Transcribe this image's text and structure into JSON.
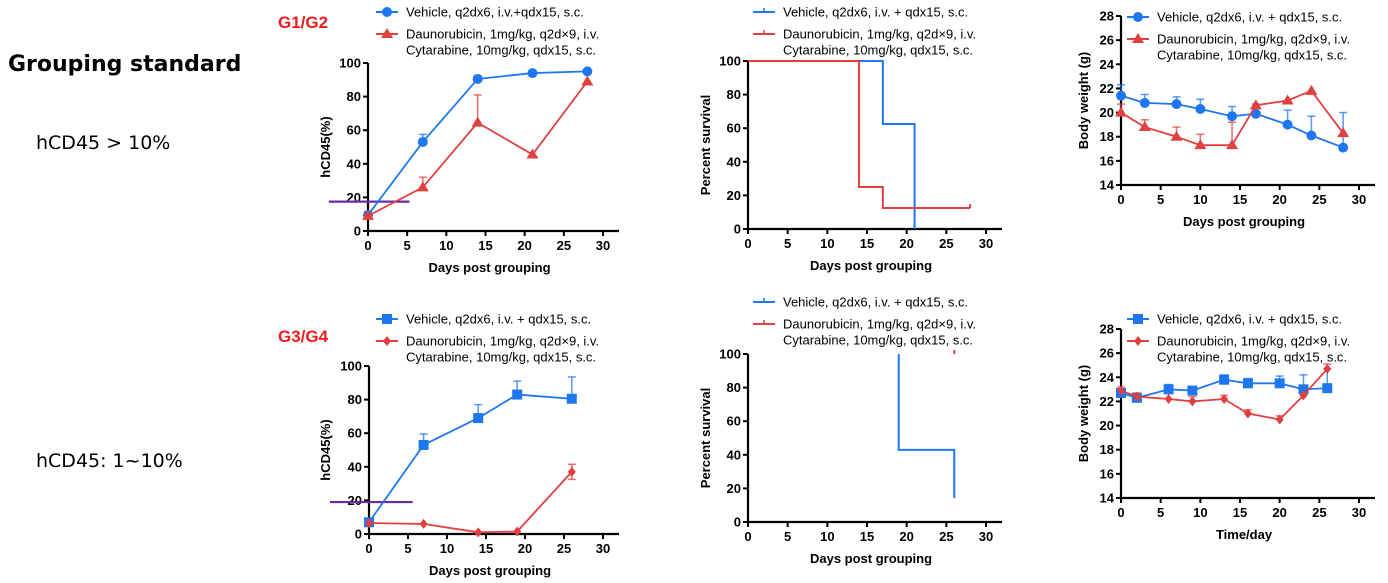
{
  "side": {
    "title": "Grouping standard",
    "criterion_1": "hCD45 > 10%",
    "criterion_2": "hCD45: 1~10%"
  },
  "groups": [
    "G1/G2",
    "G3/G4"
  ],
  "colors": {
    "vehicle": "#1f77f0",
    "treatment": "#e04040",
    "threshold": "#6a2aa6"
  },
  "chart_data": [
    {
      "id": "g12-hcd45",
      "type": "line",
      "group": "G1/G2",
      "xlabel": "Days post grouping",
      "ylabel": "hCD45(%)",
      "xlim": [
        0,
        30
      ],
      "ylim": [
        0,
        100
      ],
      "xticks": [
        "0",
        "5",
        "10",
        "15",
        "20",
        "25",
        "30"
      ],
      "yticks": [
        "0",
        "20",
        "40",
        "60",
        "80",
        "100"
      ],
      "threshold_line": {
        "y": 17.5,
        "x": [
          -5,
          5.3
        ]
      },
      "series": [
        {
          "name": "Vehicle, q2dx6, i.v.+qdx15, s.c.",
          "legend_lines": [
            "Vehicle, q2dx6, i.v.+qdx15, s.c."
          ],
          "marker": "circle",
          "color_key": "vehicle",
          "x": [
            0,
            7,
            14,
            21,
            28
          ],
          "y": [
            9.5,
            53,
            90.5,
            94,
            95
          ],
          "err": [
            2,
            4.5,
            2,
            0,
            0
          ]
        },
        {
          "name": "Daunorubicin, 1mg/kg, q2d×9, i.v. Cytarabine, 10mg/kg, qdx15, s.c.",
          "legend_lines": [
            "Daunorubicin, 1mg/kg, q2d×9, i.v.",
            "Cytarabine, 10mg/kg, qdx15, s.c."
          ],
          "marker": "triangle",
          "color_key": "treatment",
          "x": [
            0,
            7,
            14,
            21,
            28
          ],
          "y": [
            9,
            26,
            64.5,
            45.5,
            89
          ],
          "err": [
            1.5,
            6,
            16.5,
            0,
            0
          ]
        }
      ]
    },
    {
      "id": "g12-survival",
      "type": "line",
      "group": "G1/G2",
      "xlabel": "Days post grouping",
      "ylabel": "Percent survival",
      "xlim": [
        0,
        30
      ],
      "ylim": [
        0,
        100
      ],
      "xticks": [
        "0",
        "5",
        "10",
        "15",
        "20",
        "25",
        "30"
      ],
      "yticks": [
        "0",
        "20",
        "40",
        "60",
        "80",
        "100"
      ],
      "series": [
        {
          "name": "Vehicle, q2dx6, i.v. + qdx15, s.c.",
          "legend_lines": [
            "Vehicle, q2dx6, i.v. + qdx15, s.c."
          ],
          "marker": "step",
          "color_key": "vehicle",
          "steps": [
            [
              0,
              100
            ],
            [
              17,
              62.5
            ],
            [
              21,
              0
            ]
          ],
          "end_x": 21
        },
        {
          "name": "Daunorubicin, 1mg/kg, q2d×9, i.v. Cytarabine, 10mg/kg, qdx15, s.c.",
          "legend_lines": [
            "Daunorubicin, 1mg/kg, q2d×9, i.v.",
            "Cytarabine, 10mg/kg, qdx15, s.c."
          ],
          "marker": "step",
          "color_key": "treatment",
          "steps": [
            [
              0,
              100
            ],
            [
              14,
              25
            ],
            [
              17,
              12.5
            ]
          ],
          "end_x": 28,
          "censored": [
            [
              28,
              12.5
            ]
          ]
        }
      ]
    },
    {
      "id": "g12-bodyweight",
      "type": "line",
      "group": "G1/G2",
      "xlabel": "Days post grouping",
      "ylabel": "Body weight (g)",
      "xlim": [
        0,
        30
      ],
      "ylim": [
        14,
        28
      ],
      "xticks": [
        "0",
        "5",
        "10",
        "15",
        "20",
        "25",
        "30"
      ],
      "yticks": [
        "14",
        "16",
        "18",
        "20",
        "22",
        "24",
        "26",
        "28"
      ],
      "series": [
        {
          "name": "Vehicle, q2dx6, i.v. + qdx15, s.c.",
          "legend_lines": [
            "Vehicle, q2dx6, i.v. + qdx15, s.c."
          ],
          "marker": "circle",
          "color_key": "vehicle",
          "x": [
            0,
            3,
            7,
            10,
            14,
            17,
            21,
            24,
            28
          ],
          "y": [
            21.4,
            20.8,
            20.7,
            20.3,
            19.7,
            19.9,
            19.0,
            18.1,
            17.1
          ],
          "err": [
            0.9,
            0.7,
            0.6,
            0.8,
            0.8,
            0.8,
            1.2,
            1.6,
            2.9
          ]
        },
        {
          "name": "Daunorubicin, 1mg/kg, q2d×9, i.v. Cytarabine, 10mg/kg, qdx15, s.c.",
          "legend_lines": [
            "Daunorubicin, 1mg/kg, q2d×9, i.v.",
            "Cytarabine, 10mg/kg, qdx15, s.c."
          ],
          "marker": "triangle",
          "color_key": "treatment",
          "x": [
            0,
            3,
            7,
            10,
            14,
            17,
            21,
            24,
            28
          ],
          "y": [
            20.0,
            18.8,
            18.0,
            17.3,
            17.3,
            20.6,
            21.0,
            21.8,
            18.3
          ],
          "err": [
            0.7,
            0.6,
            0.8,
            0.9,
            1.9,
            0,
            0,
            0,
            0
          ]
        }
      ]
    },
    {
      "id": "g34-hcd45",
      "type": "line",
      "group": "G3/G4",
      "xlabel": "Days post grouping",
      "ylabel": "hCD45(%)",
      "xlim": [
        0,
        30
      ],
      "ylim": [
        0,
        100
      ],
      "xticks": [
        "0",
        "5",
        "10",
        "15",
        "20",
        "25",
        "30"
      ],
      "yticks": [
        "0",
        "20",
        "40",
        "60",
        "80",
        "100"
      ],
      "threshold_line": {
        "y": 19,
        "x": [
          -5,
          5.6
        ]
      },
      "series": [
        {
          "name": "Vehicle, q2dx6, i.v. + qdx15, s.c.",
          "legend_lines": [
            "Vehicle, q2dx6, i.v. + qdx15, s.c."
          ],
          "marker": "square",
          "color_key": "vehicle",
          "x": [
            0,
            7,
            14,
            19,
            26
          ],
          "y": [
            7,
            53,
            69,
            83,
            80.5
          ],
          "err": [
            0,
            6.5,
            8,
            8,
            13
          ]
        },
        {
          "name": "Daunorubicin, 1mg/kg, q2d×9, i.v. Cytarabine, 10mg/kg, qdx15, s.c.",
          "legend_lines": [
            "Daunorubicin, 1mg/kg, q2d×9, i.v.",
            "Cytarabine, 10mg/kg, qdx15, s.c."
          ],
          "marker": "diamond",
          "color_key": "treatment",
          "x": [
            0,
            7,
            14,
            19,
            26
          ],
          "y": [
            6.5,
            6,
            1,
            1.5,
            37
          ],
          "err": [
            0,
            0,
            0,
            0,
            4.5
          ]
        }
      ]
    },
    {
      "id": "g34-survival",
      "type": "line",
      "group": "G3/G4",
      "xlabel": "Days post grouping",
      "ylabel": "Percent survival",
      "xlim": [
        0,
        30
      ],
      "ylim": [
        0,
        100
      ],
      "xticks": [
        "0",
        "5",
        "10",
        "15",
        "20",
        "25",
        "30"
      ],
      "yticks": [
        "0",
        "20",
        "40",
        "60",
        "80",
        "100"
      ],
      "series": [
        {
          "name": "Vehicle, q2dx6, i.v. + qdx15, s.c.",
          "legend_lines": [
            "Vehicle, q2dx6, i.v. + qdx15, s.c."
          ],
          "marker": "step",
          "color_key": "vehicle",
          "steps": [
            [
              19,
              100
            ],
            [
              19,
              42.9
            ],
            [
              26,
              14.3
            ]
          ],
          "end_x": 26
        },
        {
          "name": "Daunorubicin, 1mg/kg, q2d×9, i.v. Cytarabine, 10mg/kg, qdx15, s.c.",
          "legend_lines": [
            "Daunorubicin, 1mg/kg, q2d×9, i.v.",
            "Cytarabine, 10mg/kg, qdx15, s.c."
          ],
          "marker": "step",
          "color_key": "treatment",
          "steps": [],
          "censored": [
            [
              26,
              100
            ]
          ]
        }
      ]
    },
    {
      "id": "g34-bodyweight",
      "type": "line",
      "group": "G3/G4",
      "xlabel": "Time/day",
      "ylabel": "Body weight (g)",
      "xlim": [
        0,
        30
      ],
      "ylim": [
        14,
        28
      ],
      "xticks": [
        "0",
        "5",
        "10",
        "15",
        "20",
        "25",
        "30"
      ],
      "yticks": [
        "14",
        "16",
        "18",
        "20",
        "22",
        "24",
        "26",
        "28"
      ],
      "series": [
        {
          "name": "Vehicle, q2dx6, i.v. + qdx15, s.c.",
          "legend_lines": [
            "Vehicle, q2dx6, i.v. + qdx15, s.c."
          ],
          "marker": "square",
          "color_key": "vehicle",
          "x": [
            0,
            2,
            6,
            9,
            13,
            16,
            20,
            23,
            26
          ],
          "y": [
            22.7,
            22.3,
            23.0,
            22.9,
            23.8,
            23.5,
            23.5,
            23.0,
            23.1
          ],
          "err": [
            0,
            0,
            0.4,
            0,
            0.4,
            0.4,
            0.6,
            1.2,
            1.6
          ]
        },
        {
          "name": "Daunorubicin, 1mg/kg, q2d×9, i.v. Cytarabine, 10mg/kg, qdx15, s.c.",
          "legend_lines": [
            "Daunorubicin, 1mg/kg, q2d×9, i.v.",
            "Cytarabine, 10mg/kg, qdx15, s.c."
          ],
          "marker": "diamond",
          "color_key": "treatment",
          "x": [
            0,
            2,
            6,
            9,
            13,
            16,
            20,
            23,
            26
          ],
          "y": [
            22.9,
            22.4,
            22.2,
            22.0,
            22.2,
            21.0,
            20.5,
            22.5,
            24.7
          ],
          "err": [
            0.3,
            0.3,
            0,
            0.4,
            0.3,
            0.3,
            0.3,
            0,
            0.4
          ]
        }
      ]
    }
  ]
}
